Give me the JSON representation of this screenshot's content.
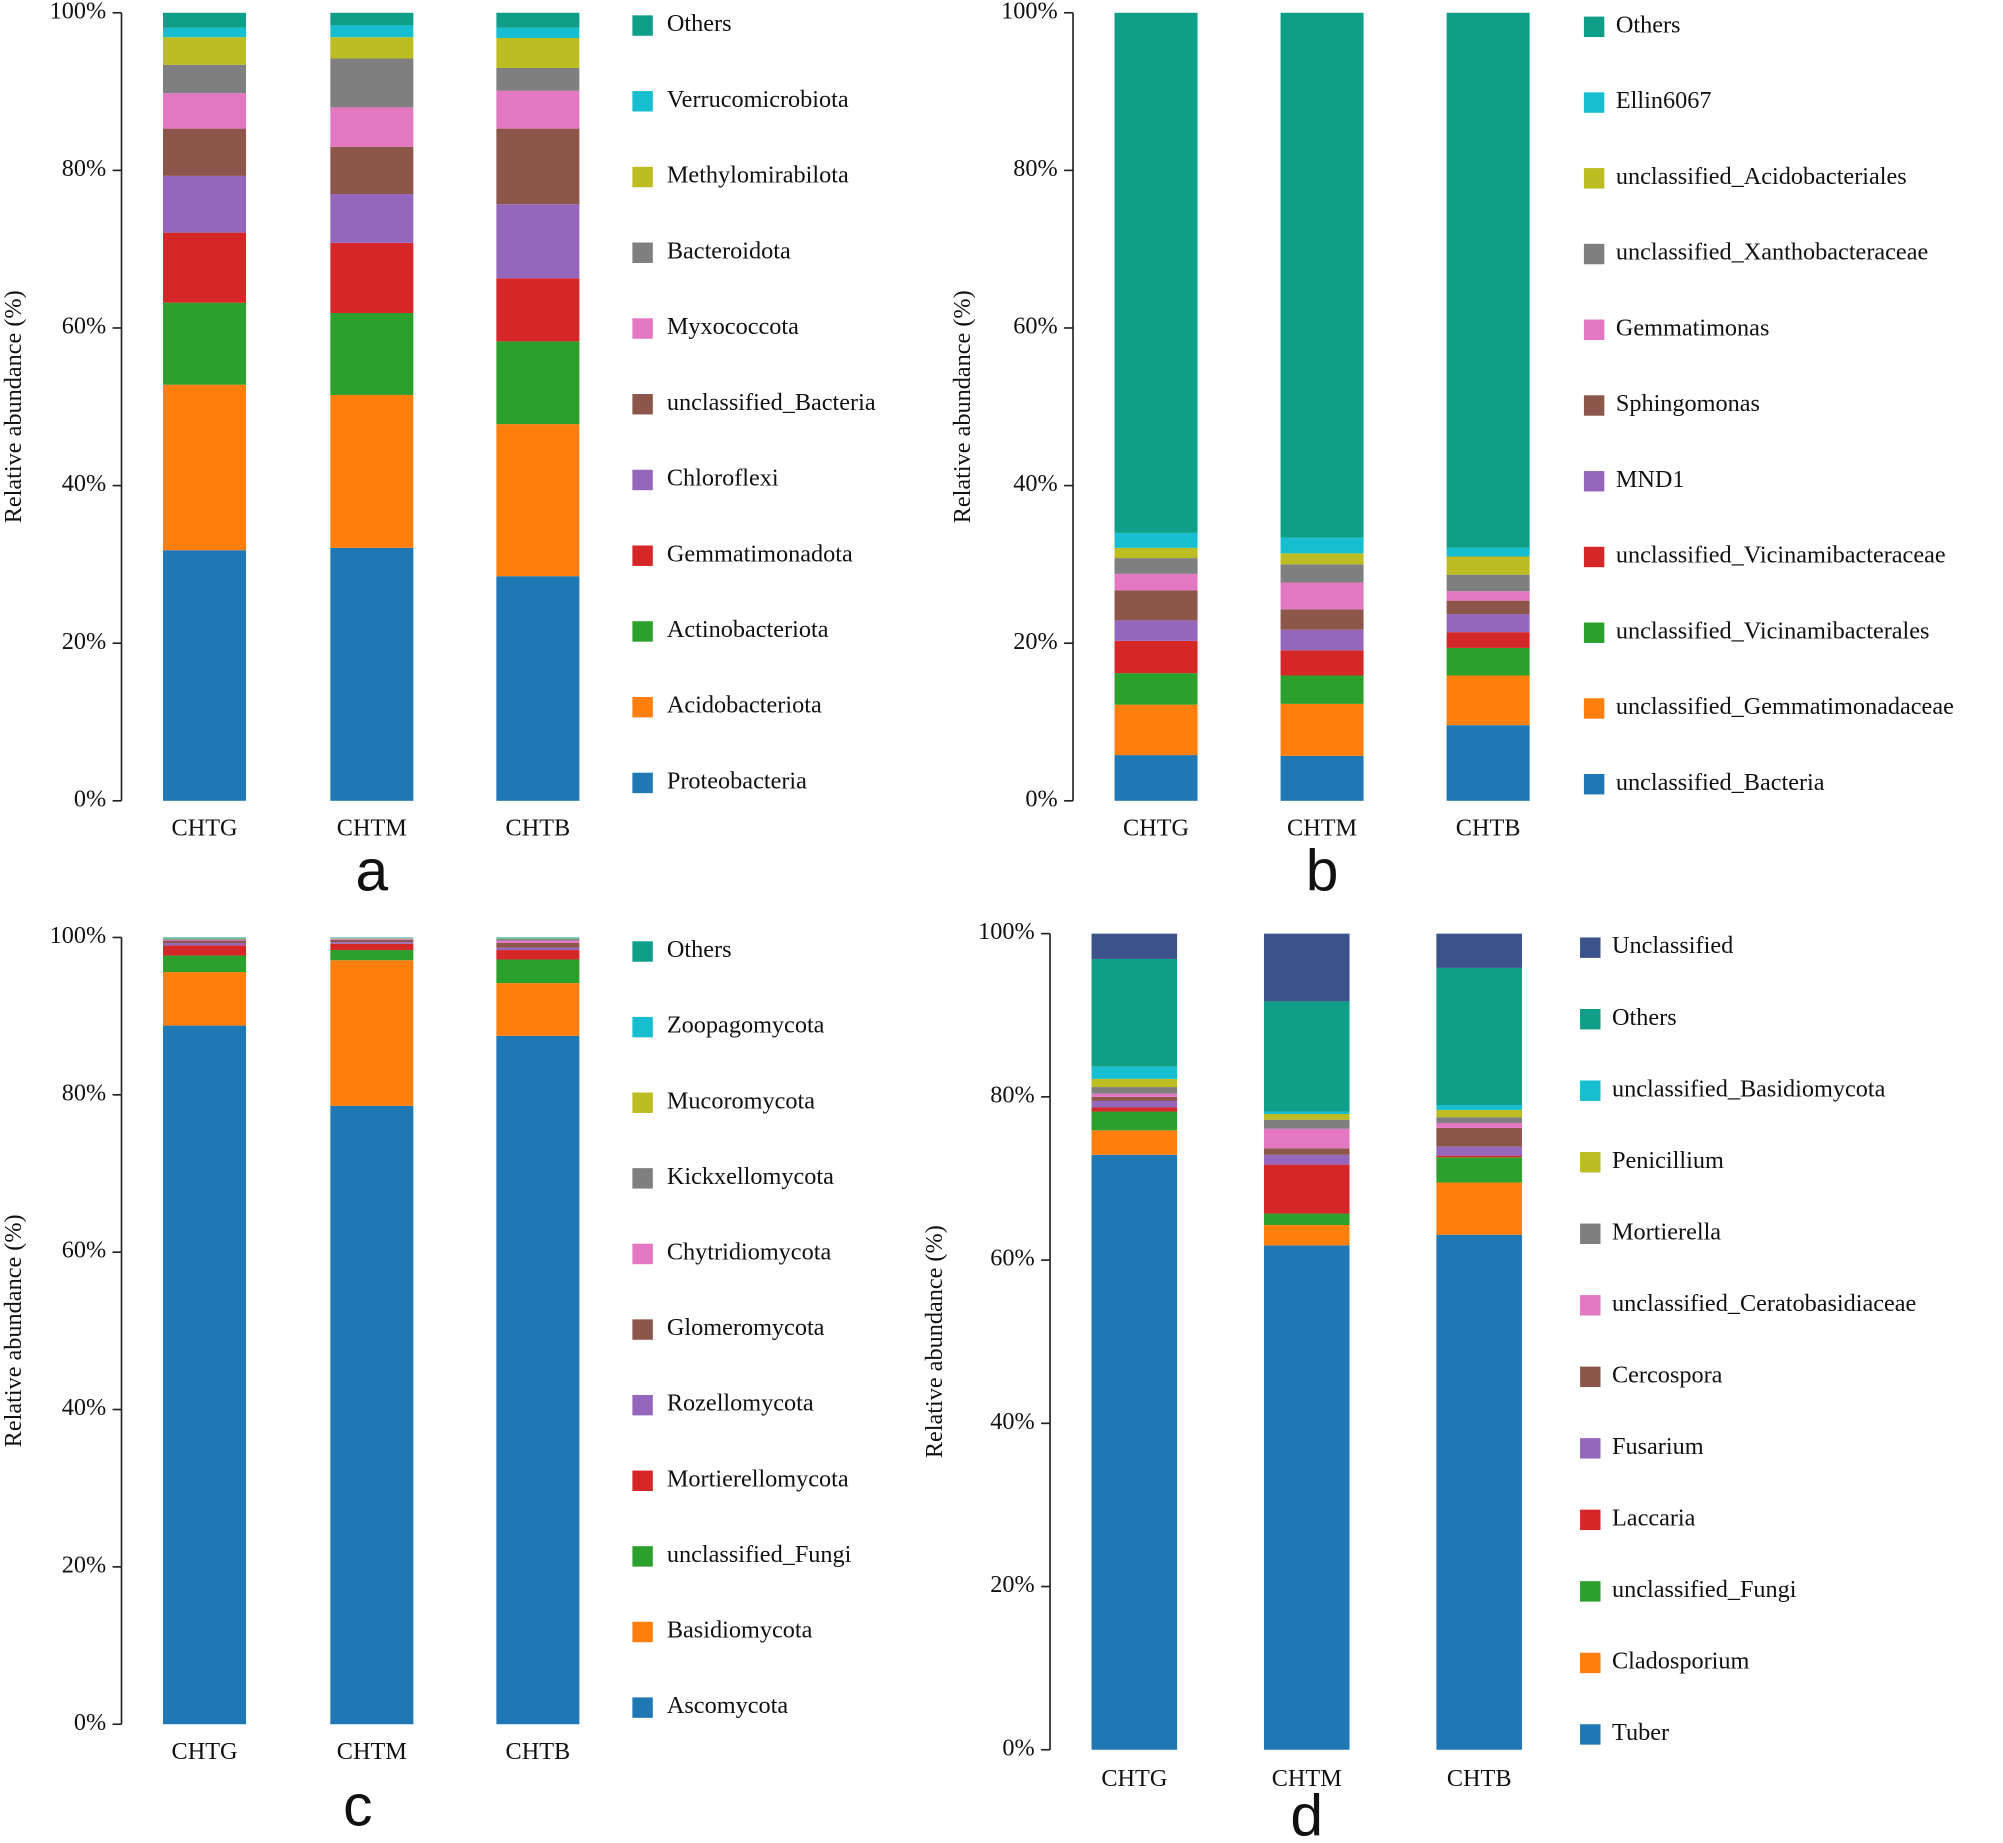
{
  "chart_data": [
    {
      "type": "bar",
      "stacked": true,
      "panel_label": "a",
      "ylabel": "Relative abundance (%)",
      "categories": [
        "CHTG",
        "CHTM",
        "CHTB"
      ],
      "ylim": [
        0,
        100
      ],
      "yticks": [
        {
          "value": 0,
          "label": "0%"
        },
        {
          "value": 20,
          "label": "20%"
        },
        {
          "value": 40,
          "label": "40%"
        },
        {
          "value": 60,
          "label": "60%"
        },
        {
          "value": 80,
          "label": "80%"
        },
        {
          "value": 100,
          "label": "100%"
        }
      ],
      "series": [
        {
          "name": "Proteobacteria",
          "color": "#1f77b4",
          "values": [
            31.8,
            32.1,
            28.5
          ]
        },
        {
          "name": "Acidobacteriota",
          "color": "#ff7f0e",
          "values": [
            21.0,
            19.4,
            19.3
          ]
        },
        {
          "name": "Actinobacteriota",
          "color": "#2ca02c",
          "values": [
            10.4,
            10.4,
            10.5
          ]
        },
        {
          "name": "Gemmatimonadota",
          "color": "#d62728",
          "values": [
            8.9,
            8.9,
            8.0
          ]
        },
        {
          "name": "Chloroflexi",
          "color": "#9467bd",
          "values": [
            7.2,
            6.2,
            9.4
          ]
        },
        {
          "name": "unclassified_Bacteria",
          "color": "#8c564b",
          "values": [
            6.0,
            6.0,
            9.6
          ]
        },
        {
          "name": "Myxococcota",
          "color": "#e377c2",
          "values": [
            4.5,
            5.0,
            4.8
          ]
        },
        {
          "name": "Bacteroidota",
          "color": "#7f7f7f",
          "values": [
            3.6,
            6.2,
            2.9
          ]
        },
        {
          "name": "Methylomirabilota",
          "color": "#bcbd22",
          "values": [
            3.5,
            2.7,
            3.8
          ]
        },
        {
          "name": "Verrucomicrobiota",
          "color": "#17becf",
          "values": [
            1.2,
            1.5,
            1.3
          ]
        },
        {
          "name": "Others",
          "color": "#0f9e88",
          "values": [
            1.9,
            1.6,
            1.9
          ]
        }
      ]
    },
    {
      "type": "bar",
      "stacked": true,
      "panel_label": "b",
      "ylabel": "Relative abundance (%)",
      "categories": [
        "CHTG",
        "CHTM",
        "CHTB"
      ],
      "ylim": [
        0,
        100
      ],
      "yticks": [
        {
          "value": 0,
          "label": "0%"
        },
        {
          "value": 20,
          "label": "20%"
        },
        {
          "value": 40,
          "label": "40%"
        },
        {
          "value": 60,
          "label": "60%"
        },
        {
          "value": 80,
          "label": "80%"
        },
        {
          "value": 100,
          "label": "100%"
        }
      ],
      "series": [
        {
          "name": "unclassified_Bacteria",
          "color": "#1f77b4",
          "values": [
            5.8,
            5.7,
            9.6
          ]
        },
        {
          "name": "unclassified_Gemmatimonadaceae",
          "color": "#ff7f0e",
          "values": [
            6.4,
            6.6,
            6.3
          ]
        },
        {
          "name": "unclassified_Vicinamibacterales",
          "color": "#2ca02c",
          "values": [
            4.0,
            3.6,
            3.5
          ]
        },
        {
          "name": "unclassified_Vicinamibacteraceae",
          "color": "#d62728",
          "values": [
            4.1,
            3.2,
            2.0
          ]
        },
        {
          "name": "MND1",
          "color": "#9467bd",
          "values": [
            2.6,
            2.6,
            2.3
          ]
        },
        {
          "name": "Sphingomonas",
          "color": "#8c564b",
          "values": [
            3.8,
            2.6,
            1.7
          ]
        },
        {
          "name": "Gemmatimonas",
          "color": "#e377c2",
          "values": [
            2.1,
            3.4,
            1.2
          ]
        },
        {
          "name": "unclassified_Xanthobacteraceae",
          "color": "#7f7f7f",
          "values": [
            2.0,
            2.3,
            2.1
          ]
        },
        {
          "name": "unclassified_Acidobacteriales",
          "color": "#bcbd22",
          "values": [
            1.3,
            1.4,
            2.3
          ]
        },
        {
          "name": "Ellin6067",
          "color": "#17becf",
          "values": [
            1.9,
            2.0,
            1.1
          ]
        },
        {
          "name": "Others",
          "color": "#0f9e88",
          "values": [
            66.0,
            66.6,
            67.9
          ]
        }
      ]
    },
    {
      "type": "bar",
      "stacked": true,
      "panel_label": "c",
      "ylabel": "Relative abundance (%)",
      "categories": [
        "CHTG",
        "CHTM",
        "CHTB"
      ],
      "ylim": [
        0,
        100
      ],
      "yticks": [
        {
          "value": 0,
          "label": "0%"
        },
        {
          "value": 20,
          "label": "20%"
        },
        {
          "value": 40,
          "label": "40%"
        },
        {
          "value": 60,
          "label": "60%"
        },
        {
          "value": 80,
          "label": "80%"
        },
        {
          "value": 100,
          "label": "100%"
        }
      ],
      "series": [
        {
          "name": "Ascomycota",
          "color": "#1f77b4",
          "values": [
            88.8,
            78.6,
            87.5
          ]
        },
        {
          "name": "Basidiomycota",
          "color": "#ff7f0e",
          "values": [
            6.8,
            18.5,
            6.7
          ]
        },
        {
          "name": "unclassified_Fungi",
          "color": "#2ca02c",
          "values": [
            2.1,
            1.3,
            3.0
          ]
        },
        {
          "name": "Mortierellomycota",
          "color": "#d62728",
          "values": [
            1.3,
            0.8,
            1.2
          ]
        },
        {
          "name": "Rozellomycota",
          "color": "#9467bd",
          "values": [
            0.3,
            0.2,
            0.3
          ]
        },
        {
          "name": "Glomeromycota",
          "color": "#8c564b",
          "values": [
            0.3,
            0.3,
            0.6
          ]
        },
        {
          "name": "Chytridiomycota",
          "color": "#e377c2",
          "values": [
            0.1,
            0.1,
            0.3
          ]
        },
        {
          "name": "Kickxellomycota",
          "color": "#7f7f7f",
          "values": [
            0.1,
            0.05,
            0.2
          ]
        },
        {
          "name": "Mucoromycota",
          "color": "#bcbd22",
          "values": [
            0.05,
            0.05,
            0.05
          ]
        },
        {
          "name": "Zoopagomycota",
          "color": "#17becf",
          "values": [
            0.05,
            0.05,
            0.05
          ]
        },
        {
          "name": "Others",
          "color": "#0f9e88",
          "values": [
            0.1,
            0.05,
            0.1
          ]
        }
      ]
    },
    {
      "type": "bar",
      "stacked": true,
      "panel_label": "d",
      "ylabel": "Relative abundance (%)",
      "categories": [
        "CHTG",
        "CHTM",
        "CHTB"
      ],
      "ylim": [
        0,
        100
      ],
      "yticks": [
        {
          "value": 0,
          "label": "0%"
        },
        {
          "value": 20,
          "label": "20%"
        },
        {
          "value": 40,
          "label": "40%"
        },
        {
          "value": 60,
          "label": "60%"
        },
        {
          "value": 80,
          "label": "80%"
        },
        {
          "value": 100,
          "label": "100%"
        }
      ],
      "series": [
        {
          "name": "Tuber",
          "color": "#1f77b4",
          "values": [
            72.9,
            61.8,
            63.1
          ]
        },
        {
          "name": "Cladosporium",
          "color": "#ff7f0e",
          "values": [
            3.0,
            2.5,
            6.4
          ]
        },
        {
          "name": "unclassified_Fungi",
          "color": "#2ca02c",
          "values": [
            2.3,
            1.4,
            3.1
          ]
        },
        {
          "name": "Laccaria",
          "color": "#d62728",
          "values": [
            0.5,
            6.0,
            0.2
          ]
        },
        {
          "name": "Fusarium",
          "color": "#9467bd",
          "values": [
            0.8,
            1.2,
            1.1
          ]
        },
        {
          "name": "Cercospora",
          "color": "#8c564b",
          "values": [
            0.5,
            0.8,
            2.3
          ]
        },
        {
          "name": "unclassified_Ceratobasidiaceae",
          "color": "#e377c2",
          "values": [
            0.4,
            2.4,
            0.6
          ]
        },
        {
          "name": "Mortierella",
          "color": "#7f7f7f",
          "values": [
            0.8,
            1.1,
            0.7
          ]
        },
        {
          "name": "Penicillium",
          "color": "#bcbd22",
          "values": [
            1.0,
            0.7,
            0.9
          ]
        },
        {
          "name": "unclassified_Basidiomycota",
          "color": "#17becf",
          "values": [
            1.5,
            0.3,
            0.6
          ]
        },
        {
          "name": "Others",
          "color": "#0f9e88",
          "values": [
            13.2,
            13.5,
            16.8
          ]
        },
        {
          "name": "Unclassified",
          "color": "#3b528b",
          "values": [
            3.1,
            8.3,
            4.2
          ]
        }
      ]
    }
  ]
}
